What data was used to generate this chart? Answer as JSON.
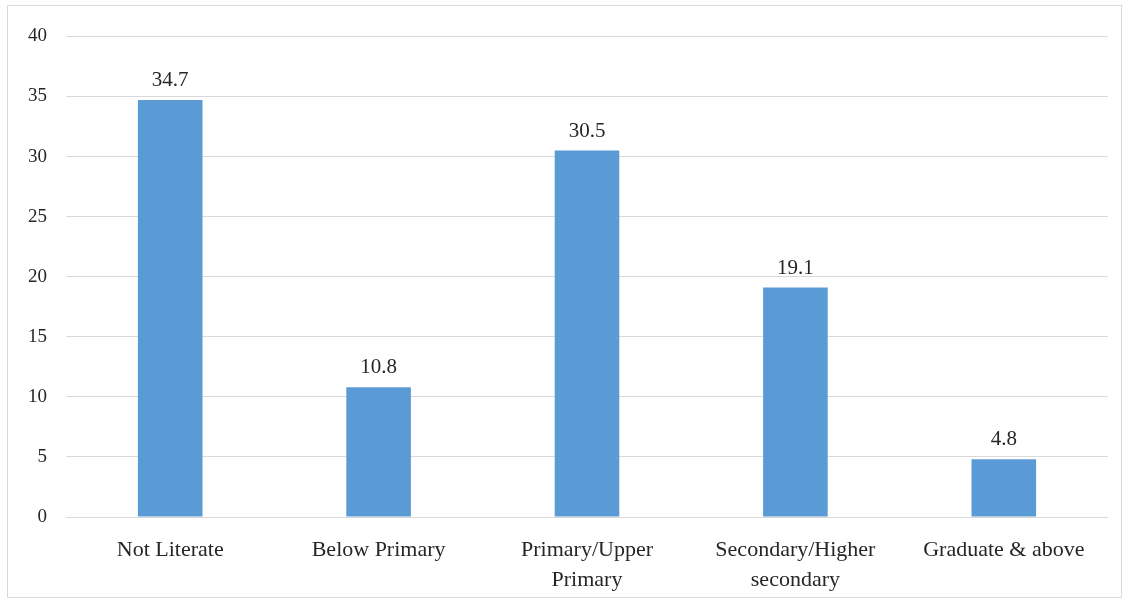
{
  "chart_data": {
    "type": "bar",
    "categories": [
      "Not Literate",
      "Below Primary",
      "Primary/Upper Primary",
      "Secondary/Higher secondary",
      "Graduate & above"
    ],
    "values": [
      34.7,
      10.8,
      30.5,
      19.1,
      4.8
    ],
    "color": "#5b9bd5",
    "ylim": [
      0,
      40
    ],
    "yticks": [
      0,
      5,
      10,
      15,
      20,
      25,
      30,
      35,
      40
    ],
    "grid": "y",
    "data_labels": true
  }
}
